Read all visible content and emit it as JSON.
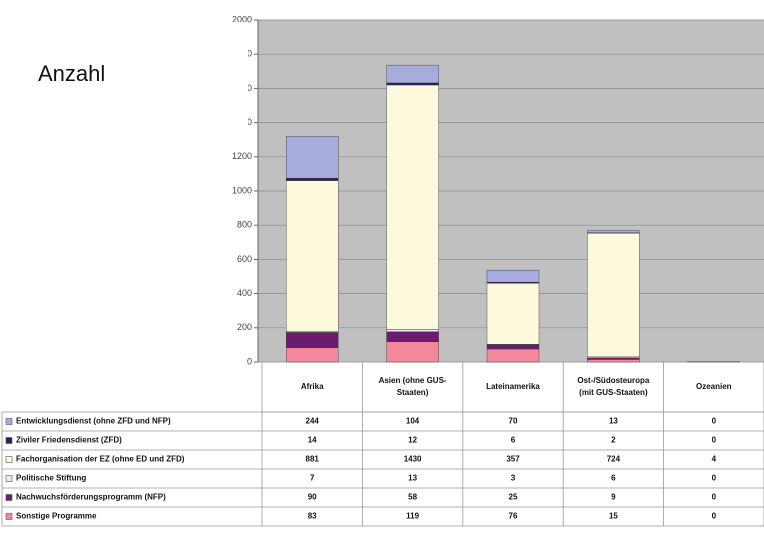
{
  "chart_data": {
    "type": "stacked_bar",
    "y_label": "Anzahl",
    "categories": [
      "Afrika",
      "Asien (ohne GUS-Staaten)",
      "Lateinamerika",
      "Ost-/Südosteuropa (mit GUS-Staaten)",
      "Ozeanien"
    ],
    "series": [
      {
        "name": "Entwicklungsdienst (ohne ZFD und NFP)",
        "color": "#a7acdc",
        "values": [
          244,
          104,
          70,
          13,
          0
        ]
      },
      {
        "name": "Ziviler Friedensdienst (ZFD)",
        "color": "#2c1c58",
        "values": [
          14,
          12,
          6,
          2,
          0
        ]
      },
      {
        "name": "Fachorganisation der EZ (ohne ED und ZFD)",
        "color": "#fdf9dc",
        "values": [
          881,
          1430,
          357,
          724,
          4
        ]
      },
      {
        "name": "Politische Stiftung",
        "color": "#eeeaf2",
        "values": [
          7,
          13,
          3,
          6,
          0
        ]
      },
      {
        "name": "Nachwuchsförderungsprogramm (NFP)",
        "color": "#6b1c6e",
        "values": [
          90,
          58,
          25,
          9,
          0
        ]
      },
      {
        "name": "Sonstige Programme",
        "color": "#f3879c",
        "values": [
          83,
          119,
          76,
          15,
          0
        ]
      }
    ],
    "ylim": [
      0,
      2000
    ],
    "yticks": [
      0,
      200,
      400,
      600,
      800,
      1000,
      1200,
      {
        "value": 1400,
        "label": "00"
      },
      {
        "value": 1600,
        "label": "00"
      },
      {
        "value": 1800,
        "label": "00"
      },
      2000
    ],
    "grid": true
  }
}
